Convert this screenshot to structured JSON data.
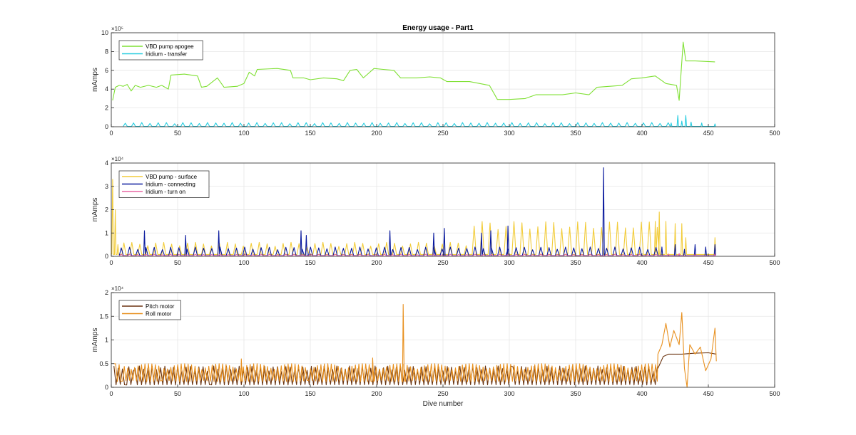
{
  "figure": {
    "title": "Energy usage - Part1",
    "xlabel": "Dive number"
  },
  "chart_data": [
    {
      "type": "line",
      "title": "Energy usage - Part1",
      "ylabel": "mAmps",
      "xlim": [
        0,
        500
      ],
      "ylim": [
        0,
        1000000
      ],
      "xticks": [
        0,
        50,
        100,
        150,
        200,
        250,
        300,
        350,
        400,
        450,
        500
      ],
      "yticks": [
        0,
        200000,
        400000,
        600000,
        800000,
        1000000
      ],
      "ytick_labels": [
        "0",
        "2",
        "4",
        "6",
        "8",
        "10"
      ],
      "exponent": "×10⁵",
      "grid": true,
      "legend_position": "top-left",
      "series": [
        {
          "name": "VBD pump apogee",
          "color": "#7fe033",
          "kind": "steps",
          "points": [
            [
              1,
              280000
            ],
            [
              3,
              420000
            ],
            [
              6,
              440000
            ],
            [
              9,
              430000
            ],
            [
              12,
              450000
            ],
            [
              15,
              380000
            ],
            [
              18,
              440000
            ],
            [
              22,
              420000
            ],
            [
              28,
              440000
            ],
            [
              34,
              420000
            ],
            [
              38,
              440000
            ],
            [
              43,
              400000
            ],
            [
              45,
              550000
            ],
            [
              55,
              560000
            ],
            [
              65,
              540000
            ],
            [
              68,
              420000
            ],
            [
              72,
              430000
            ],
            [
              80,
              520000
            ],
            [
              85,
              420000
            ],
            [
              95,
              430000
            ],
            [
              100,
              460000
            ],
            [
              104,
              580000
            ],
            [
              108,
              540000
            ],
            [
              110,
              610000
            ],
            [
              125,
              620000
            ],
            [
              135,
              600000
            ],
            [
              137,
              520000
            ],
            [
              145,
              520000
            ],
            [
              150,
              500000
            ],
            [
              160,
              520000
            ],
            [
              170,
              510000
            ],
            [
              175,
              490000
            ],
            [
              180,
              600000
            ],
            [
              185,
              610000
            ],
            [
              190,
              520000
            ],
            [
              198,
              620000
            ],
            [
              205,
              610000
            ],
            [
              213,
              600000
            ],
            [
              218,
              520000
            ],
            [
              230,
              520000
            ],
            [
              240,
              530000
            ],
            [
              248,
              520000
            ],
            [
              253,
              480000
            ],
            [
              270,
              480000
            ],
            [
              285,
              440000
            ],
            [
              291,
              290000
            ],
            [
              300,
              290000
            ],
            [
              312,
              300000
            ],
            [
              320,
              340000
            ],
            [
              340,
              340000
            ],
            [
              350,
              360000
            ],
            [
              360,
              340000
            ],
            [
              366,
              420000
            ],
            [
              385,
              440000
            ],
            [
              392,
              510000
            ],
            [
              400,
              520000
            ],
            [
              410,
              540000
            ],
            [
              418,
              460000
            ],
            [
              426,
              440000
            ],
            [
              428,
              280000
            ],
            [
              431,
              900000
            ],
            [
              433,
              700000
            ],
            [
              440,
              700000
            ],
            [
              455,
              690000
            ]
          ]
        },
        {
          "name": "Iridium - transfer",
          "color": "#27cde0",
          "kind": "spikes",
          "base": 3000,
          "start": 9,
          "end": 420,
          "period": 6.2,
          "peak": 45000,
          "extra": [
            [
              422,
              40000
            ],
            [
              427,
              120000
            ],
            [
              430,
              60000
            ],
            [
              433,
              120000
            ],
            [
              437,
              50000
            ],
            [
              445,
              40000
            ],
            [
              455,
              30000
            ]
          ]
        }
      ]
    },
    {
      "type": "line",
      "ylabel": "mAmps",
      "xlim": [
        0,
        500
      ],
      "ylim": [
        0,
        40000
      ],
      "xticks": [
        0,
        50,
        100,
        150,
        200,
        250,
        300,
        350,
        400,
        450,
        500
      ],
      "yticks": [
        0,
        10000,
        20000,
        30000,
        40000
      ],
      "ytick_labels": [
        "0",
        "1",
        "2",
        "3",
        "4"
      ],
      "exponent": "×10⁴",
      "grid": true,
      "legend_position": "top-left",
      "series": [
        {
          "name": "VBD pump - surface",
          "color": "#f2cc3a",
          "kind": "spikes",
          "base": 800,
          "start": 8,
          "end": 410,
          "period": 6,
          "peak": 6000,
          "segments": [
            [
              270,
              410,
              15000
            ]
          ],
          "extra": [
            [
              1,
              33000
            ],
            [
              3,
              20000
            ],
            [
              5,
              5000
            ],
            [
              410,
              15000
            ],
            [
              413,
              19000
            ],
            [
              418,
              15000
            ],
            [
              425,
              14000
            ],
            [
              430,
              14000
            ],
            [
              433,
              8000
            ],
            [
              455,
              8000
            ]
          ]
        },
        {
          "name": "Iridium - connecting",
          "color": "#0a1a9e",
          "kind": "spikes",
          "base": 300,
          "start": 6,
          "end": 410,
          "period": 6.2,
          "peak": 4000,
          "extra": [
            [
              25,
              11000
            ],
            [
              56,
              9000
            ],
            [
              81,
              11000
            ],
            [
              143,
              11000
            ],
            [
              147,
              9000
            ],
            [
              210,
              11000
            ],
            [
              243,
              10000
            ],
            [
              251,
              12000
            ],
            [
              279,
              10000
            ],
            [
              286,
              11000
            ],
            [
              299,
              13000
            ],
            [
              371,
              38000
            ],
            [
              415,
              4000
            ],
            [
              425,
              5000
            ],
            [
              432,
              3000
            ],
            [
              440,
              5000
            ],
            [
              448,
              4000
            ],
            [
              455,
              5000
            ]
          ]
        },
        {
          "name": "Iridium - turn on",
          "color": "#e966a4",
          "kind": "spikes",
          "base": 200,
          "start": 6,
          "end": 410,
          "period": 6.2,
          "peak": 900,
          "extra": [
            [
              420,
              1000
            ],
            [
              428,
              1200
            ],
            [
              440,
              900
            ],
            [
              455,
              1000
            ]
          ]
        }
      ]
    },
    {
      "type": "line",
      "xlabel": "Dive number",
      "ylabel": "mAmps",
      "xlim": [
        0,
        500
      ],
      "ylim": [
        0,
        20000
      ],
      "xticks": [
        0,
        50,
        100,
        150,
        200,
        250,
        300,
        350,
        400,
        450,
        500
      ],
      "yticks": [
        0,
        5000,
        10000,
        15000,
        20000
      ],
      "ytick_labels": [
        "0",
        "0.5",
        "1",
        "1.5",
        "2"
      ],
      "exponent": "×10⁴",
      "grid": true,
      "legend_position": "top-left",
      "series": [
        {
          "name": "Pitch motor",
          "color": "#6b3410",
          "kind": "wave",
          "start": 2,
          "end": 412,
          "period": 3.2,
          "low": 500,
          "high": 4500,
          "tail": [
            [
              412,
              4000
            ],
            [
              416,
              6500
            ],
            [
              420,
              7000
            ],
            [
              430,
              7000
            ],
            [
              440,
              7200
            ],
            [
              450,
              7300
            ],
            [
              456,
              7000
            ]
          ]
        },
        {
          "name": "Roll motor",
          "color": "#e8901e",
          "kind": "wave",
          "start": 2,
          "end": 412,
          "period": 2.6,
          "low": 1200,
          "high": 5000,
          "spikes": [
            [
              220,
              17500
            ],
            [
              98,
              6000
            ],
            [
              197,
              6200
            ]
          ],
          "tail": [
            [
              412,
              7000
            ],
            [
              415,
              9000
            ],
            [
              418,
              13500
            ],
            [
              421,
              8500
            ],
            [
              424,
              12000
            ],
            [
              428,
              9000
            ],
            [
              430,
              15800
            ],
            [
              432,
              4000
            ],
            [
              434,
              -1000
            ],
            [
              436,
              9000
            ],
            [
              440,
              7000
            ],
            [
              444,
              8500
            ],
            [
              448,
              3500
            ],
            [
              452,
              6000
            ],
            [
              455,
              12500
            ],
            [
              456,
              5500
            ]
          ]
        }
      ]
    }
  ]
}
